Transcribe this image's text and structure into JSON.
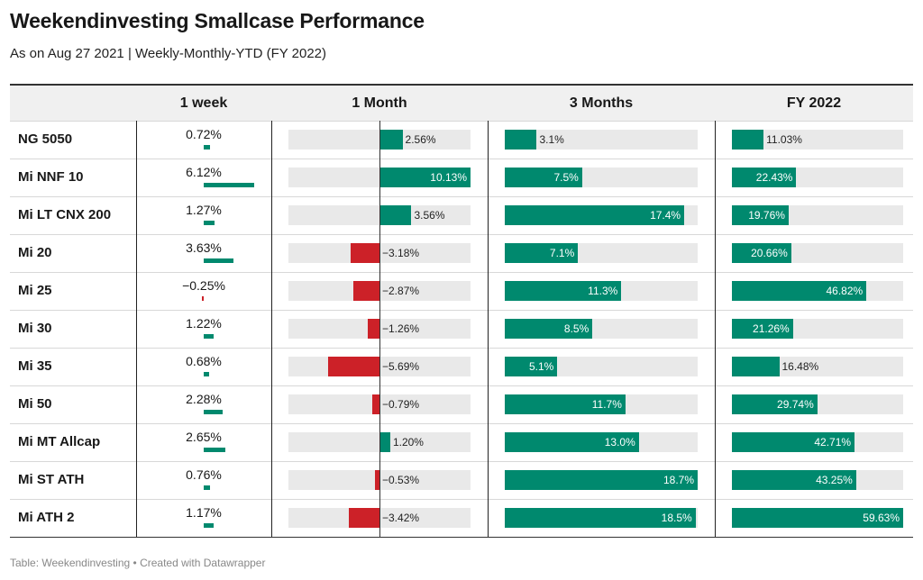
{
  "title": "Weekendinvesting Smallcase Performance",
  "subtitle": "As on Aug 27 2021 | Weekly-Monthly-YTD (FY 2022)",
  "footer": "Table: Weekendinvesting • Created with Datawrapper",
  "colors": {
    "positive": "#00896e",
    "negative": "#cc2128",
    "track": "#e9e9e9"
  },
  "chart_data": {
    "type": "table",
    "columns": [
      "",
      "1 week",
      "1 Month",
      "3 Months",
      "FY 2022"
    ],
    "rows": [
      {
        "name": "NG 5050",
        "week": 0.72,
        "week_label": "0.72%",
        "month": 2.56,
        "month_label": "2.56%",
        "months3": 3.1,
        "months3_label": "3.1%",
        "fy": 11.03,
        "fy_label": "11.03%"
      },
      {
        "name": "Mi NNF 10",
        "week": 6.12,
        "week_label": "6.12%",
        "month": 10.13,
        "month_label": "10.13%",
        "months3": 7.5,
        "months3_label": "7.5%",
        "fy": 22.43,
        "fy_label": "22.43%"
      },
      {
        "name": "Mi LT CNX 200",
        "week": 1.27,
        "week_label": "1.27%",
        "month": 3.56,
        "month_label": "3.56%",
        "months3": 17.4,
        "months3_label": "17.4%",
        "fy": 19.76,
        "fy_label": "19.76%"
      },
      {
        "name": "Mi 20",
        "week": 3.63,
        "week_label": "3.63%",
        "month": -3.18,
        "month_label": "−3.18%",
        "months3": 7.1,
        "months3_label": "7.1%",
        "fy": 20.66,
        "fy_label": "20.66%"
      },
      {
        "name": "Mi 25",
        "week": -0.25,
        "week_label": "−0.25%",
        "month": -2.87,
        "month_label": "−2.87%",
        "months3": 11.3,
        "months3_label": "11.3%",
        "fy": 46.82,
        "fy_label": "46.82%"
      },
      {
        "name": "Mi 30",
        "week": 1.22,
        "week_label": "1.22%",
        "month": -1.26,
        "month_label": "−1.26%",
        "months3": 8.5,
        "months3_label": "8.5%",
        "fy": 21.26,
        "fy_label": "21.26%"
      },
      {
        "name": "Mi 35",
        "week": 0.68,
        "week_label": "0.68%",
        "month": -5.69,
        "month_label": "−5.69%",
        "months3": 5.1,
        "months3_label": "5.1%",
        "fy": 16.48,
        "fy_label": "16.48%"
      },
      {
        "name": "Mi 50",
        "week": 2.28,
        "week_label": "2.28%",
        "month": -0.79,
        "month_label": "−0.79%",
        "months3": 11.7,
        "months3_label": "11.7%",
        "fy": 29.74,
        "fy_label": "29.74%"
      },
      {
        "name": "Mi MT Allcap",
        "week": 2.65,
        "week_label": "2.65%",
        "month": 1.2,
        "month_label": "1.20%",
        "months3": 13.0,
        "months3_label": "13.0%",
        "fy": 42.71,
        "fy_label": "42.71%"
      },
      {
        "name": "Mi ST ATH",
        "week": 0.76,
        "week_label": "0.76%",
        "month": -0.53,
        "month_label": "−0.53%",
        "months3": 18.7,
        "months3_label": "18.7%",
        "fy": 43.25,
        "fy_label": "43.25%"
      },
      {
        "name": "Mi ATH 2",
        "week": 1.17,
        "week_label": "1.17%",
        "month": -3.42,
        "month_label": "−3.42%",
        "months3": 18.5,
        "months3_label": "18.5%",
        "fy": 59.63,
        "fy_label": "59.63%"
      }
    ],
    "ranges": {
      "month": [
        -10.13,
        10.13
      ],
      "months3": [
        0,
        18.7
      ],
      "fy": [
        0,
        59.63
      ]
    },
    "week_scale_max": 6.12
  }
}
